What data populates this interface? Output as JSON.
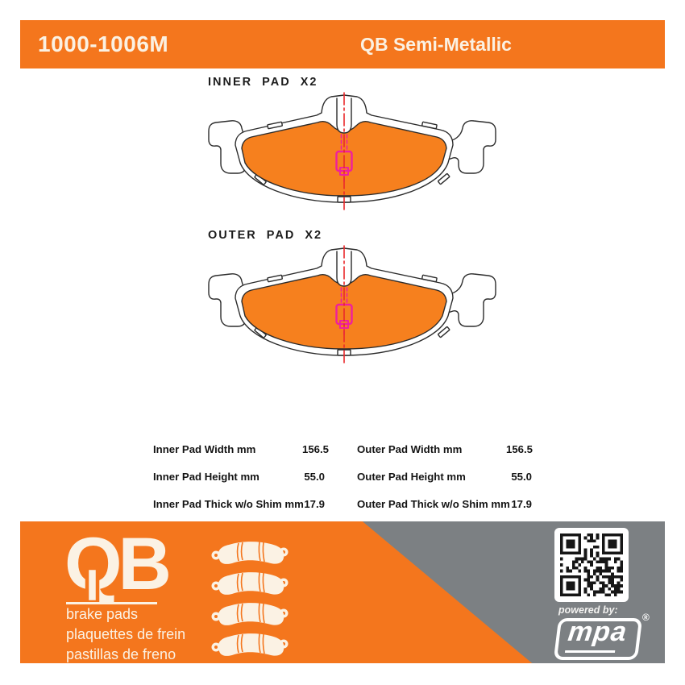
{
  "header": {
    "part_number": "1000-1006M",
    "product_line": "QB Semi-Metallic"
  },
  "figures": [
    {
      "label": "INNER PAD X2"
    },
    {
      "label": "OUTER PAD X2"
    }
  ],
  "specs": {
    "rows": [
      {
        "label": "Inner Pad Width mm",
        "value": "156.5"
      },
      {
        "label": "Inner Pad Height mm",
        "value": "55.0"
      },
      {
        "label": "Inner Pad Thick w/o Shim mm",
        "value": "17.9"
      },
      {
        "label": "Outer Pad Width mm",
        "value": "156.5"
      },
      {
        "label": "Outer Pad Height mm",
        "value": "55.0"
      },
      {
        "label": "Outer Pad Thick w/o Shim mm",
        "value": "17.9"
      }
    ]
  },
  "footer": {
    "logo_text": "QB",
    "tagline_lines": [
      "brake pads",
      "plaquettes de frein",
      "pastillas de freno"
    ],
    "powered_by": "powered by:",
    "brand": "mpa",
    "registered_mark": "®"
  },
  "colors": {
    "brand_orange": "#F4761D",
    "pad_orange": "#F6801E",
    "footer_gray": "#7C8083",
    "centerline_red": "#E9282B",
    "sensor_magenta": "#EF1F9E",
    "cream_text": "#FBF2E4",
    "ink": "#141414"
  }
}
